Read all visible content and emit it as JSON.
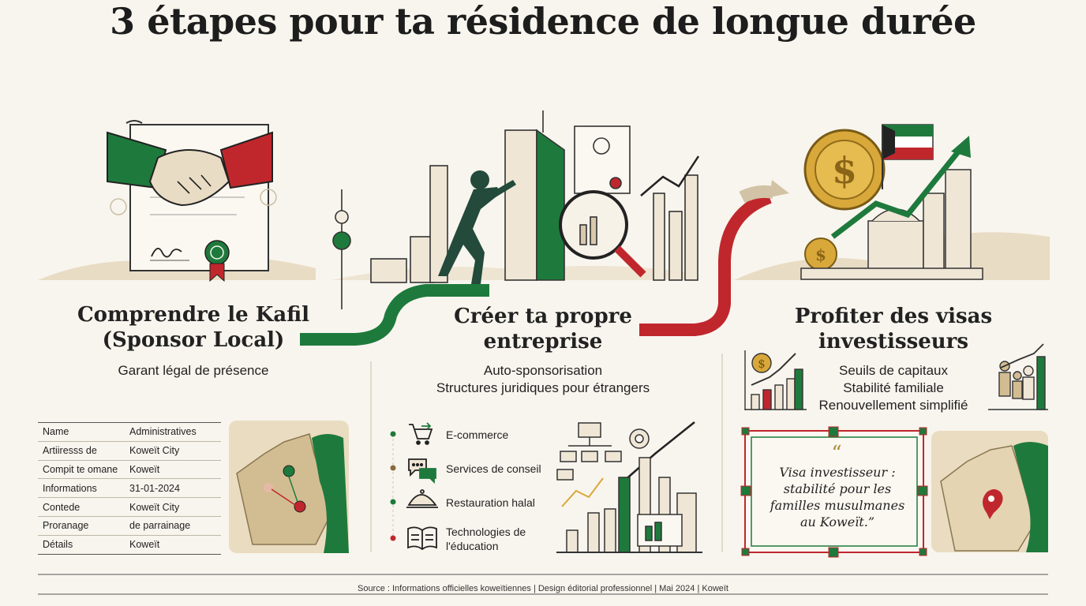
{
  "title": "3 étapes pour ta résidence de longue durée",
  "steps": [
    {
      "title_lines": [
        "Comprendre le Kafil",
        "(Sponsor Local)"
      ],
      "subtitle_lines": [
        "Garant légal de présence"
      ]
    },
    {
      "title_lines": [
        "Créer ta propre",
        "entreprise"
      ],
      "subtitle_lines": [
        "Auto-sponsorisation",
        "Structures juridiques pour étrangers"
      ]
    },
    {
      "title_lines": [
        "Profiter des visas",
        "investisseurs"
      ],
      "subtitle_lines": [
        "Seuils de capitaux",
        "Stabilité familiale",
        "Renouvellement simplifié"
      ]
    }
  ],
  "details_table": [
    {
      "key": "Name",
      "value": "Administratives"
    },
    {
      "key": "Artiiresss de",
      "value": "Koweït City"
    },
    {
      "key": "Compit te omane",
      "value": "Koweït"
    },
    {
      "key": "Informations",
      "value": "31-01-2024"
    },
    {
      "key": "Contede",
      "value": "Koweït City"
    },
    {
      "key": "Proranage",
      "value": "de parrainage"
    },
    {
      "key": "Détails",
      "value": "Koweït"
    }
  ],
  "services": [
    {
      "label_lines": [
        "E-commerce"
      ],
      "icon": "cart-icon"
    },
    {
      "label_lines": [
        "Services de conseil"
      ],
      "icon": "chat-bubbles-icon"
    },
    {
      "label_lines": [
        "Restauration halal"
      ],
      "icon": "cloche-icon"
    },
    {
      "label_lines": [
        "Technologies de",
        "l'éducation"
      ],
      "icon": "book-icon"
    }
  ],
  "quote": {
    "mark": "“",
    "lines": [
      "Visa investisseur :",
      "stabilité pour les",
      "familles musulmanes",
      "au Koweït.”"
    ]
  },
  "footer": "Source : Informations officielles koweïtiennes | Design éditorial professionnel | Mai 2024 | Koweït",
  "colors": {
    "green": "#1e7a3c",
    "red": "#c0272d",
    "sand": "#e8dcc4",
    "gold": "#d9a83a",
    "dark": "#2a2a2a"
  }
}
